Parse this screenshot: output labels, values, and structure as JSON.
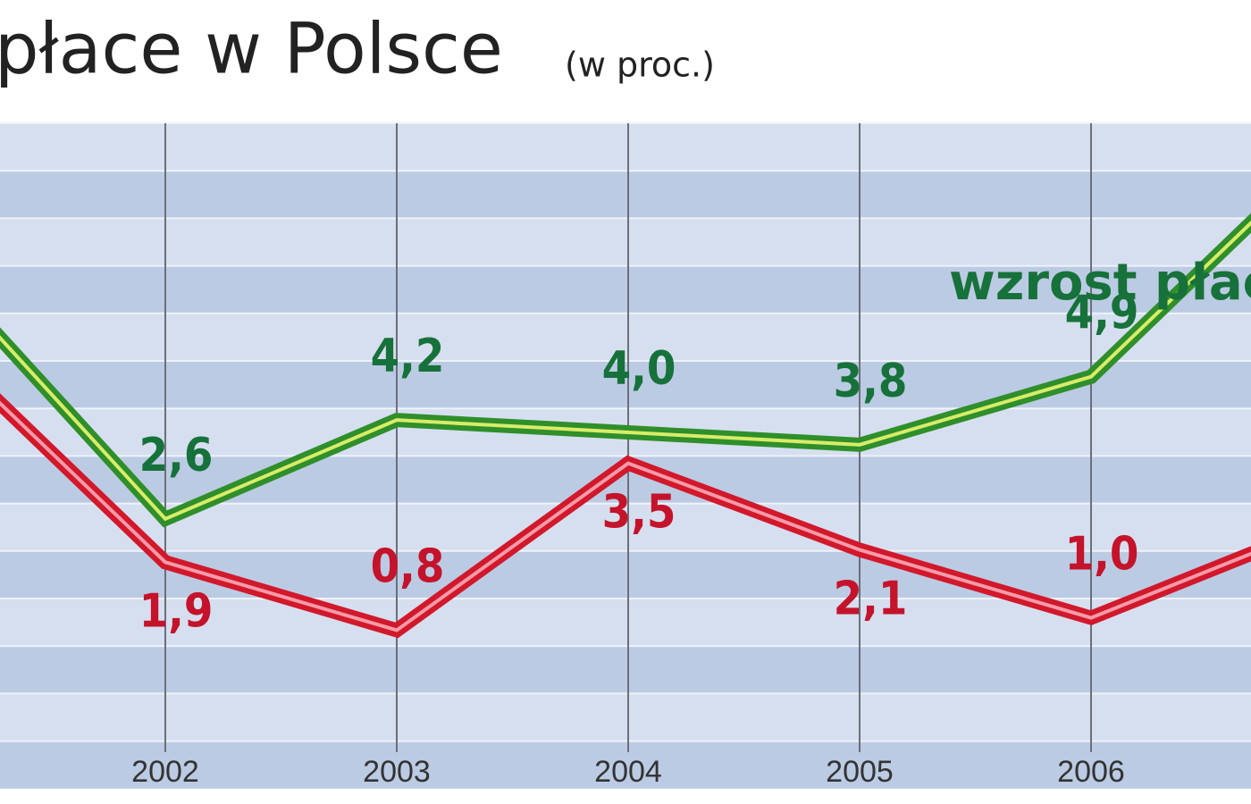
{
  "title": "płace w Polsce",
  "subtitle": "(w proc.)",
  "chart_data": {
    "type": "line",
    "categories": [
      null,
      "2002",
      "2003",
      "2004",
      "2005",
      "2006",
      null
    ],
    "ylim": [
      -1,
      9
    ],
    "annotation": "wzrost płac",
    "series": [
      {
        "name": "wzrost płac",
        "color": "#2f8f2a",
        "values": [
          6.7,
          2.6,
          4.2,
          4.0,
          3.8,
          4.9,
          8.5
        ],
        "value_labels": [
          null,
          "2,6",
          "4,2",
          "4,0",
          "3,8",
          "4,9",
          null
        ]
      },
      {
        "color": "#d2182b",
        "values": [
          5.5,
          1.9,
          0.8,
          3.5,
          2.1,
          1.0,
          2.5
        ],
        "value_labels": [
          null,
          "1,9",
          "0,8",
          "3,5",
          "2,1",
          "1,0",
          null
        ]
      }
    ]
  }
}
